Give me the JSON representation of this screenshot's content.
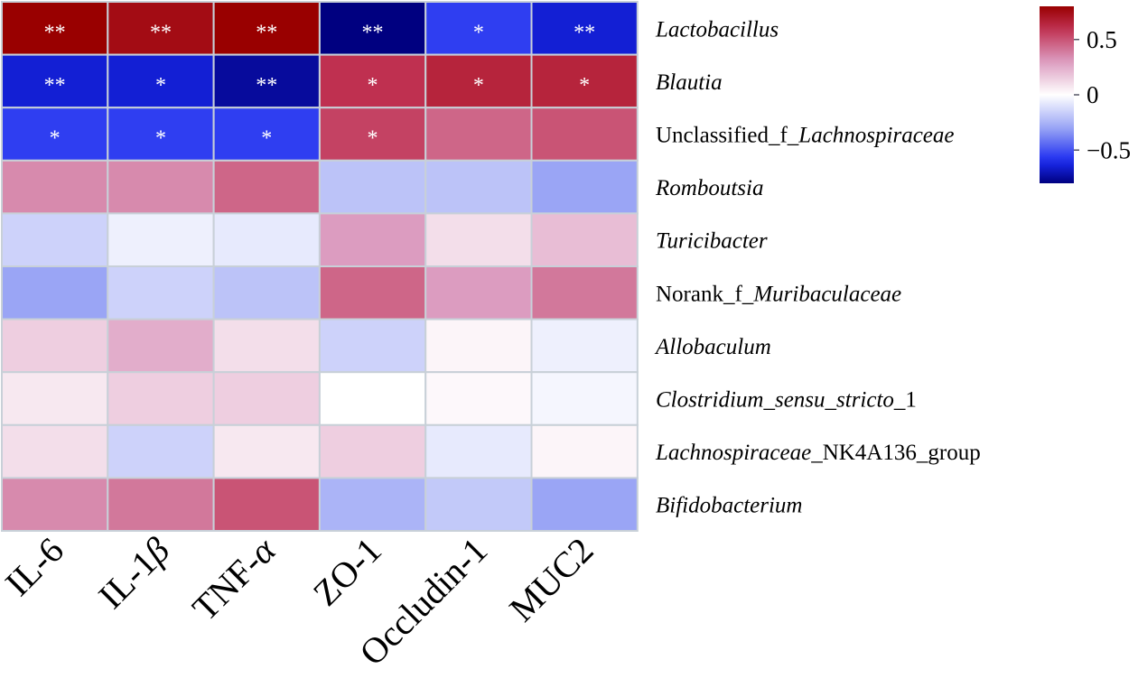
{
  "chart_data": {
    "type": "heatmap",
    "columns": [
      "IL-6",
      "IL-1β",
      "TNF-α",
      "ZO-1",
      "Occludin-1",
      "MUC2"
    ],
    "column_parts": [
      [
        {
          "t": "IL-6",
          "i": false
        }
      ],
      [
        {
          "t": "IL-1",
          "i": false
        },
        {
          "t": "β",
          "i": true
        }
      ],
      [
        {
          "t": "TNF-",
          "i": false
        },
        {
          "t": "α",
          "i": true
        }
      ],
      [
        {
          "t": "ZO-1",
          "i": false
        }
      ],
      [
        {
          "t": "Occludin-1",
          "i": false
        }
      ],
      [
        {
          "t": "MUC2",
          "i": false
        }
      ]
    ],
    "rows": [
      [
        {
          "t": "Lactobacillus",
          "i": true
        }
      ],
      [
        {
          "t": "Blautia",
          "i": true
        }
      ],
      [
        {
          "t": "Unclassified_f_",
          "i": false
        },
        {
          "t": "Lachnospiraceae",
          "i": true
        }
      ],
      [
        {
          "t": "Romboutsia",
          "i": true
        }
      ],
      [
        {
          "t": "Turicibacter",
          "i": true
        }
      ],
      [
        {
          "t": "Norank_f_",
          "i": false
        },
        {
          "t": "Muribaculaceae",
          "i": true
        }
      ],
      [
        {
          "t": "Allobaculum",
          "i": true
        }
      ],
      [
        {
          "t": "Clostridium_sensu_stricto",
          "i": true
        },
        {
          "t": "_1",
          "i": false
        }
      ],
      [
        {
          "t": "Lachnospiraceae",
          "i": true
        },
        {
          "t": "_NK4A136_group",
          "i": false
        }
      ],
      [
        {
          "t": "Bifidobacterium",
          "i": true
        }
      ]
    ],
    "values": [
      [
        0.8,
        0.75,
        0.8,
        -0.8,
        -0.55,
        -0.65
      ],
      [
        -0.65,
        -0.65,
        -0.75,
        0.6,
        0.65,
        0.65
      ],
      [
        -0.55,
        -0.55,
        -0.55,
        0.55,
        0.45,
        0.5
      ],
      [
        0.35,
        0.35,
        0.45,
        -0.2,
        -0.2,
        -0.3
      ],
      [
        -0.15,
        -0.05,
        -0.07,
        0.3,
        0.1,
        0.2
      ],
      [
        -0.3,
        -0.15,
        -0.2,
        0.45,
        0.3,
        0.4
      ],
      [
        0.15,
        0.25,
        0.1,
        -0.15,
        0.03,
        -0.05
      ],
      [
        0.07,
        0.15,
        0.15,
        0.0,
        0.02,
        -0.03
      ],
      [
        0.1,
        -0.15,
        0.07,
        0.15,
        -0.07,
        0.03
      ],
      [
        0.35,
        0.4,
        0.5,
        -0.25,
        -0.18,
        -0.3
      ]
    ],
    "significance": [
      [
        "**",
        "**",
        "**",
        "**",
        "*",
        "**"
      ],
      [
        "**",
        "*",
        "**",
        "*",
        "*",
        "*"
      ],
      [
        "*",
        "*",
        "*",
        "*",
        "",
        ""
      ],
      [
        "",
        "",
        "",
        "",
        "",
        ""
      ],
      [
        "",
        "",
        "",
        "",
        "",
        ""
      ],
      [
        "",
        "",
        "",
        "",
        "",
        ""
      ],
      [
        "",
        "",
        "",
        "",
        "",
        ""
      ],
      [
        "",
        "",
        "",
        "",
        "",
        ""
      ],
      [
        "",
        "",
        "",
        "",
        "",
        ""
      ],
      [
        "",
        "",
        "",
        "",
        "",
        ""
      ]
    ],
    "colorbar": {
      "range": [
        -0.8,
        0.8
      ],
      "ticks": [
        0.5,
        0,
        -0.5
      ],
      "tick_labels": [
        "0.5",
        "0",
        "−0.5"
      ],
      "colors": {
        "low": "#000080",
        "mid": "#ffffff",
        "high": "#990000"
      }
    },
    "legend_placement": "top-right",
    "grid": true
  }
}
